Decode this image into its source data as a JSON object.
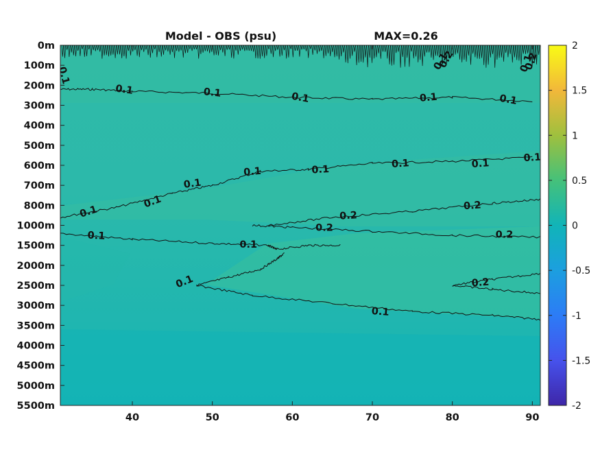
{
  "chart_data": {
    "type": "heatmap",
    "title_left": "Model - OBS (psu)",
    "title_right": "MAX=0.26",
    "x_ticks": [
      40,
      50,
      60,
      70,
      80,
      90
    ],
    "xlim": [
      31,
      91
    ],
    "y_ticks": [
      "0m",
      "100m",
      "200m",
      "300m",
      "400m",
      "500m",
      "600m",
      "700m",
      "800m",
      "1000m",
      "1500m",
      "2000m",
      "2500m",
      "3000m",
      "3500m",
      "4000m",
      "4500m",
      "5000m",
      "5500m"
    ],
    "colorbar": {
      "range": [
        -2,
        2
      ],
      "ticks": [
        "2",
        "1.5",
        "1",
        "0.5",
        "0",
        "-0.5",
        "-1",
        "-1.5",
        "-2"
      ],
      "colormap": "parula"
    },
    "contours": [
      {
        "level": 0.1,
        "label": "0.1",
        "y_index": [
          [
            31,
            2.2
          ],
          [
            35,
            2.2
          ],
          [
            40,
            2.3
          ],
          [
            50,
            2.4
          ],
          [
            60,
            2.6
          ],
          [
            70,
            2.7
          ],
          [
            80,
            2.6
          ],
          [
            90,
            2.8
          ]
        ]
      },
      {
        "level": 0.1,
        "label": "0.1",
        "y_index": [
          [
            31,
            8.6
          ],
          [
            38,
            8.1
          ],
          [
            45,
            7.4
          ],
          [
            50,
            7.0
          ],
          [
            56,
            6.3
          ],
          [
            62,
            6.2
          ],
          [
            70,
            5.9
          ],
          [
            80,
            5.8
          ],
          [
            90,
            5.6
          ]
        ]
      },
      {
        "level": 0.1,
        "label": "0.1",
        "y_index": [
          [
            31,
            9.4
          ],
          [
            40,
            9.7
          ],
          [
            50,
            9.9
          ],
          [
            57,
            10.0
          ],
          [
            58,
            10.2
          ],
          [
            62,
            10.0
          ],
          [
            66,
            10.0
          ]
        ]
      },
      {
        "level": 0.1,
        "label": "0.1",
        "y_index": [
          [
            48,
            12.0
          ],
          [
            52,
            11.6
          ],
          [
            56,
            11.2
          ],
          [
            58,
            10.7
          ],
          [
            59,
            10.4
          ]
        ]
      },
      {
        "level": 0.1,
        "label": "0.1",
        "y_index": [
          [
            48,
            12.0
          ],
          [
            55,
            12.5
          ],
          [
            65,
            12.9
          ],
          [
            75,
            13.3
          ],
          [
            85,
            13.5
          ],
          [
            91,
            13.7
          ]
        ]
      },
      {
        "level": 0.2,
        "label": "0.2",
        "y_index": [
          [
            55,
            9.0
          ],
          [
            60,
            9.1
          ],
          [
            70,
            9.3
          ],
          [
            80,
            9.5
          ],
          [
            91,
            9.6
          ]
        ]
      },
      {
        "level": 0.2,
        "label": "0.2",
        "y_index": [
          [
            57,
            9.0
          ],
          [
            65,
            8.6
          ],
          [
            75,
            8.3
          ],
          [
            85,
            7.9
          ],
          [
            91,
            7.7
          ]
        ]
      },
      {
        "level": 0.2,
        "label": "0.2",
        "y_index": [
          [
            80,
            12.0
          ],
          [
            85,
            11.7
          ],
          [
            91,
            11.4
          ]
        ]
      },
      {
        "level": 0.2,
        "label": "0.2",
        "y_index": [
          [
            80,
            12.0
          ],
          [
            85,
            12.2
          ],
          [
            91,
            12.4
          ]
        ]
      }
    ],
    "contour_labels": [
      {
        "text": "0.1",
        "x": 31.5,
        "y_index": 1.5,
        "rot": 75
      },
      {
        "text": "0.1",
        "x": 39,
        "y_index": 2.2,
        "rot": 8
      },
      {
        "text": "0.1",
        "x": 50,
        "y_index": 2.35,
        "rot": 6
      },
      {
        "text": "0.1",
        "x": 61,
        "y_index": 2.6,
        "rot": 10
      },
      {
        "text": "0.1",
        "x": 77,
        "y_index": 2.6,
        "rot": -5
      },
      {
        "text": "0.1",
        "x": 87,
        "y_index": 2.7,
        "rot": 10
      },
      {
        "text": "0.1",
        "x": 34.5,
        "y_index": 8.3,
        "rot": -18
      },
      {
        "text": "0.1",
        "x": 42.5,
        "y_index": 7.8,
        "rot": -20
      },
      {
        "text": "0.1",
        "x": 47.5,
        "y_index": 6.9,
        "rot": -8
      },
      {
        "text": "0.1",
        "x": 55,
        "y_index": 6.3,
        "rot": -5
      },
      {
        "text": "0.1",
        "x": 63.5,
        "y_index": 6.2,
        "rot": -3
      },
      {
        "text": "0.1",
        "x": 73.5,
        "y_index": 5.9,
        "rot": -4
      },
      {
        "text": "0.1",
        "x": 83.5,
        "y_index": 5.9,
        "rot": -4
      },
      {
        "text": "0.1",
        "x": 90,
        "y_index": 5.6,
        "rot": -4
      },
      {
        "text": "0.1",
        "x": 35.5,
        "y_index": 9.5,
        "rot": 3
      },
      {
        "text": "0.1",
        "x": 54.5,
        "y_index": 9.95,
        "rot": 0
      },
      {
        "text": "0.1",
        "x": 46.5,
        "y_index": 11.8,
        "rot": -22
      },
      {
        "text": "0.1",
        "x": 71,
        "y_index": 13.3,
        "rot": 4
      },
      {
        "text": "0.2",
        "x": 67,
        "y_index": 8.5,
        "rot": -3
      },
      {
        "text": "0.2",
        "x": 64,
        "y_index": 9.1,
        "rot": 0
      },
      {
        "text": "0.2",
        "x": 82.5,
        "y_index": 8.0,
        "rot": -4
      },
      {
        "text": "0.2",
        "x": 86.5,
        "y_index": 9.45,
        "rot": 0
      },
      {
        "text": "0.2",
        "x": 83.5,
        "y_index": 11.85,
        "rot": -4
      },
      {
        "text": "0.1",
        "x": 78.5,
        "y_index": 0.8,
        "rot": -60
      },
      {
        "text": "0.2",
        "x": 79.2,
        "y_index": 0.7,
        "rot": -60
      },
      {
        "text": "0.1",
        "x": 89.2,
        "y_index": 0.9,
        "rot": -70
      },
      {
        "text": "0.2",
        "x": 89.8,
        "y_index": 0.8,
        "rot": -70
      }
    ]
  }
}
